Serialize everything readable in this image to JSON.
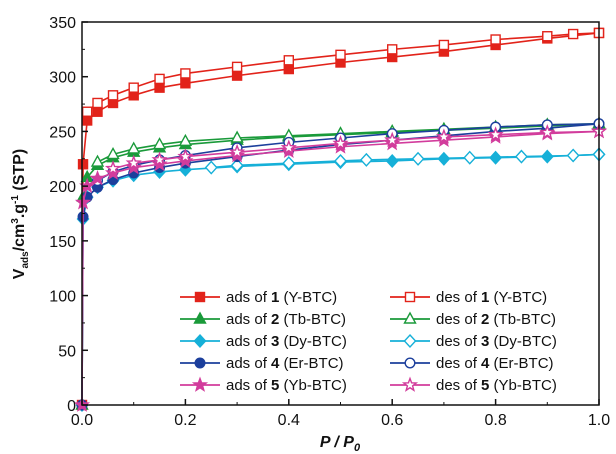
{
  "chart_data": {
    "type": "line",
    "title": "",
    "xlabel": "P / P0",
    "ylabel": "Vads/cm3.g-1 (STP)",
    "xlim": [
      0.0,
      1.0
    ],
    "ylim": [
      0,
      350
    ],
    "xticks": [
      "0.0",
      "0.2",
      "0.4",
      "0.6",
      "0.8",
      "1.0"
    ],
    "yticks": [
      "0",
      "50",
      "100",
      "150",
      "200",
      "250",
      "300",
      "350"
    ],
    "grid": false,
    "legend_position": "bottom-right",
    "series": [
      {
        "name": "ads of 1 (Y-BTC)",
        "num": "1",
        "label_pre": "ads of ",
        "label_post": " (Y-BTC)",
        "color": "#e2231a",
        "marker": "square",
        "filled": true,
        "x": [
          0.0,
          0.002,
          0.01,
          0.03,
          0.06,
          0.1,
          0.15,
          0.2,
          0.3,
          0.4,
          0.5,
          0.6,
          0.7,
          0.8,
          0.9,
          1.0
        ],
        "y": [
          0,
          220,
          260,
          268,
          276,
          283,
          290,
          294,
          301,
          307,
          313,
          318,
          323,
          329,
          335,
          340
        ]
      },
      {
        "name": "des of 1 (Y-BTC)",
        "num": "1",
        "label_pre": "des of ",
        "label_post": " (Y-BTC)",
        "color": "#e2231a",
        "marker": "square",
        "filled": false,
        "x": [
          1.0,
          0.95,
          0.9,
          0.8,
          0.7,
          0.6,
          0.5,
          0.4,
          0.3,
          0.2,
          0.15,
          0.1,
          0.06,
          0.03,
          0.01
        ],
        "y": [
          340,
          339,
          337,
          334,
          329,
          325,
          320,
          315,
          309,
          303,
          298,
          290,
          283,
          276,
          268
        ]
      },
      {
        "name": "ads of 2 (Tb-BTC)",
        "num": "2",
        "label_pre": "ads of ",
        "label_post": " (Tb-BTC)",
        "color": "#1a9a3a",
        "marker": "triangle",
        "filled": true,
        "x": [
          0.0,
          0.002,
          0.01,
          0.03,
          0.06,
          0.1,
          0.15,
          0.2,
          0.3,
          0.4,
          0.5,
          0.6,
          0.7,
          0.8,
          0.9,
          1.0
        ],
        "y": [
          0,
          190,
          208,
          219,
          226,
          231,
          235,
          238,
          242,
          245,
          247,
          249,
          251,
          253,
          255,
          257
        ]
      },
      {
        "name": "des of 2 (Tb-BTC)",
        "num": "2",
        "label_pre": "des of ",
        "label_post": " (Tb-BTC)",
        "color": "#1a9a3a",
        "marker": "triangle",
        "filled": false,
        "x": [
          1.0,
          0.9,
          0.8,
          0.7,
          0.6,
          0.5,
          0.4,
          0.3,
          0.2,
          0.15,
          0.1,
          0.06,
          0.03
        ],
        "y": [
          257,
          256,
          254,
          252,
          250,
          248,
          246,
          244,
          241,
          238,
          234,
          229,
          222
        ]
      },
      {
        "name": "ads of 3 (Dy-BTC)",
        "num": "3",
        "label_pre": "ads of ",
        "label_post": " (Dy-BTC)",
        "color": "#16b0d8",
        "marker": "diamond",
        "filled": true,
        "x": [
          0.0,
          0.002,
          0.01,
          0.03,
          0.06,
          0.1,
          0.15,
          0.2,
          0.3,
          0.4,
          0.5,
          0.6,
          0.7,
          0.8,
          0.9,
          1.0
        ],
        "y": [
          0,
          170,
          190,
          199,
          205,
          210,
          213,
          215,
          218,
          220,
          222,
          223,
          225,
          226,
          227,
          229
        ]
      },
      {
        "name": "des of 3 (Dy-BTC)",
        "num": "3",
        "label_pre": "des of ",
        "label_post": " (Dy-BTC)",
        "color": "#16b0d8",
        "marker": "diamond",
        "filled": false,
        "x": [
          1.0,
          0.95,
          0.85,
          0.75,
          0.65,
          0.55,
          0.5,
          0.4,
          0.3,
          0.25
        ],
        "y": [
          229,
          228,
          227,
          226,
          225,
          224,
          223,
          221,
          219,
          217
        ]
      },
      {
        "name": "ads of 4 (Er-BTC)",
        "num": "4",
        "label_pre": "ads of ",
        "label_post": " (Er-BTC)",
        "color": "#1c3f9c",
        "marker": "circle",
        "filled": true,
        "x": [
          0.0,
          0.002,
          0.01,
          0.03,
          0.06,
          0.1,
          0.15,
          0.2,
          0.3,
          0.4,
          0.5,
          0.6,
          0.7,
          0.8,
          0.9,
          1.0
        ],
        "y": [
          0,
          172,
          190,
          199,
          206,
          212,
          217,
          221,
          227,
          233,
          238,
          242,
          246,
          250,
          253,
          257
        ]
      },
      {
        "name": "des of 4 (Er-BTC)",
        "num": "4",
        "label_pre": "des of ",
        "label_post": " (Er-BTC)",
        "color": "#1c3f9c",
        "marker": "circle",
        "filled": false,
        "x": [
          1.0,
          0.9,
          0.8,
          0.7,
          0.6,
          0.5,
          0.4,
          0.3,
          0.2,
          0.15,
          0.1,
          0.06,
          0.03
        ],
        "y": [
          257,
          256,
          254,
          251,
          248,
          244,
          240,
          235,
          228,
          224,
          219,
          213,
          205
        ]
      },
      {
        "name": "ads of 5 (Yb-BTC)",
        "num": "5",
        "label_pre": "ads of ",
        "label_post": " (Yb-BTC)",
        "color": "#d23c9c",
        "marker": "star",
        "filled": true,
        "x": [
          0.0,
          0.002,
          0.01,
          0.03,
          0.06,
          0.1,
          0.15,
          0.2,
          0.3,
          0.4,
          0.5,
          0.6,
          0.7,
          0.8,
          0.9,
          1.0
        ],
        "y": [
          0,
          185,
          200,
          207,
          212,
          217,
          220,
          223,
          228,
          232,
          236,
          239,
          242,
          245,
          248,
          250
        ]
      },
      {
        "name": "des of 5 (Yb-BTC)",
        "num": "5",
        "label_pre": "des of ",
        "label_post": " (Yb-BTC)",
        "color": "#d23c9c",
        "marker": "star",
        "filled": false,
        "x": [
          1.0,
          0.9,
          0.8,
          0.7,
          0.6,
          0.5,
          0.4,
          0.3,
          0.2,
          0.15,
          0.1,
          0.06
        ],
        "y": [
          250,
          249,
          247,
          245,
          242,
          239,
          235,
          231,
          227,
          224,
          221,
          216
        ]
      }
    ]
  }
}
